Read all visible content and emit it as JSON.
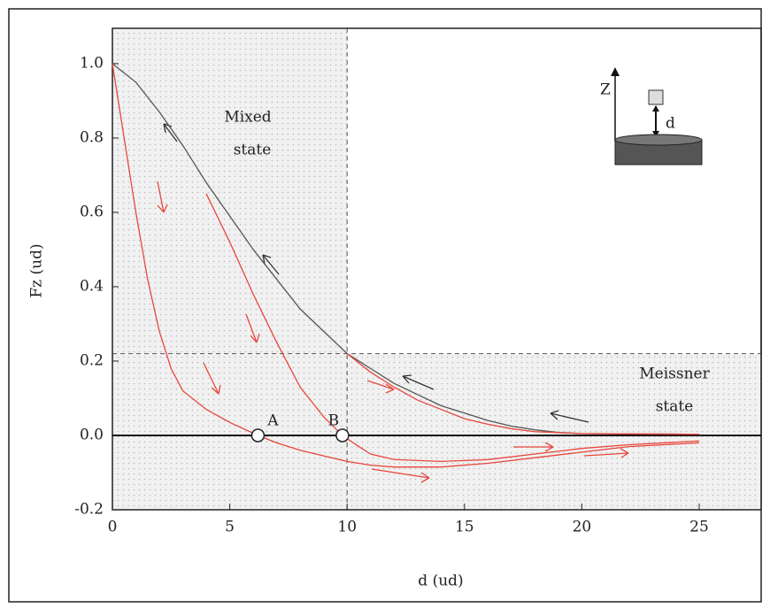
{
  "chart_data": {
    "type": "line",
    "xlabel": "d (ud)",
    "ylabel": "Fz (ud)",
    "xlim": [
      0,
      27.64
    ],
    "ylim": [
      -0.2,
      1.095
    ],
    "xticks": [
      0,
      5,
      10,
      15,
      20,
      25
    ],
    "yticks": [
      -0.2,
      {
        "value": 0,
        "label": "0.0"
      },
      0.2,
      0.4,
      0.6,
      0.8,
      {
        "value": 1,
        "label": "1.0"
      }
    ],
    "vline": 10,
    "hline": 0.22,
    "regions": [
      "Mixed",
      "state",
      "Meissner",
      "state"
    ],
    "series": [
      {
        "color": "#555555",
        "x": [
          0,
          1,
          2,
          3,
          4,
          5,
          6,
          7,
          8,
          9,
          10,
          11,
          12,
          13,
          14,
          15,
          16,
          17,
          18,
          19,
          20,
          22,
          25
        ],
        "values": [
          1.0,
          0.95,
          0.87,
          0.78,
          0.68,
          0.59,
          0.5,
          0.42,
          0.34,
          0.28,
          0.22,
          0.18,
          0.14,
          0.11,
          0.08,
          0.06,
          0.04,
          0.025,
          0.015,
          0.008,
          0.005,
          0.004,
          0.003
        ]
      },
      {
        "color": "#e8463c",
        "x": [
          0,
          0.5,
          1,
          1.5,
          2,
          2.5,
          3,
          4,
          5,
          6.2,
          7,
          8,
          9,
          10,
          11,
          12,
          14,
          16,
          18,
          20,
          22,
          25
        ],
        "values": [
          1.0,
          0.8,
          0.6,
          0.42,
          0.28,
          0.18,
          0.12,
          0.07,
          0.035,
          0.0,
          -0.02,
          -0.04,
          -0.055,
          -0.07,
          -0.08,
          -0.085,
          -0.085,
          -0.075,
          -0.06,
          -0.045,
          -0.03,
          -0.02
        ]
      },
      {
        "color": "#e8463c",
        "x": [
          4,
          5,
          6,
          7,
          8,
          9,
          9.8,
          10.5,
          11,
          12,
          14,
          16,
          18,
          20,
          22,
          25
        ],
        "values": [
          0.65,
          0.52,
          0.38,
          0.25,
          0.13,
          0.05,
          0.0,
          -0.03,
          -0.05,
          -0.065,
          -0.07,
          -0.065,
          -0.05,
          -0.035,
          -0.025,
          -0.015
        ]
      },
      {
        "color": "#e8463c",
        "x": [
          10,
          11,
          12,
          13,
          14,
          15,
          16,
          17,
          18,
          20,
          22,
          25
        ],
        "values": [
          0.22,
          0.17,
          0.13,
          0.095,
          0.07,
          0.045,
          0.03,
          0.018,
          0.01,
          0.005,
          0.004,
          0.003
        ]
      }
    ],
    "points": [
      {
        "label": "A",
        "x": 6.2,
        "y": 0
      },
      {
        "label": "B",
        "x": 9.8,
        "y": 0
      }
    ]
  },
  "inset": {
    "axis_label": "Z",
    "gap_label": "d"
  }
}
